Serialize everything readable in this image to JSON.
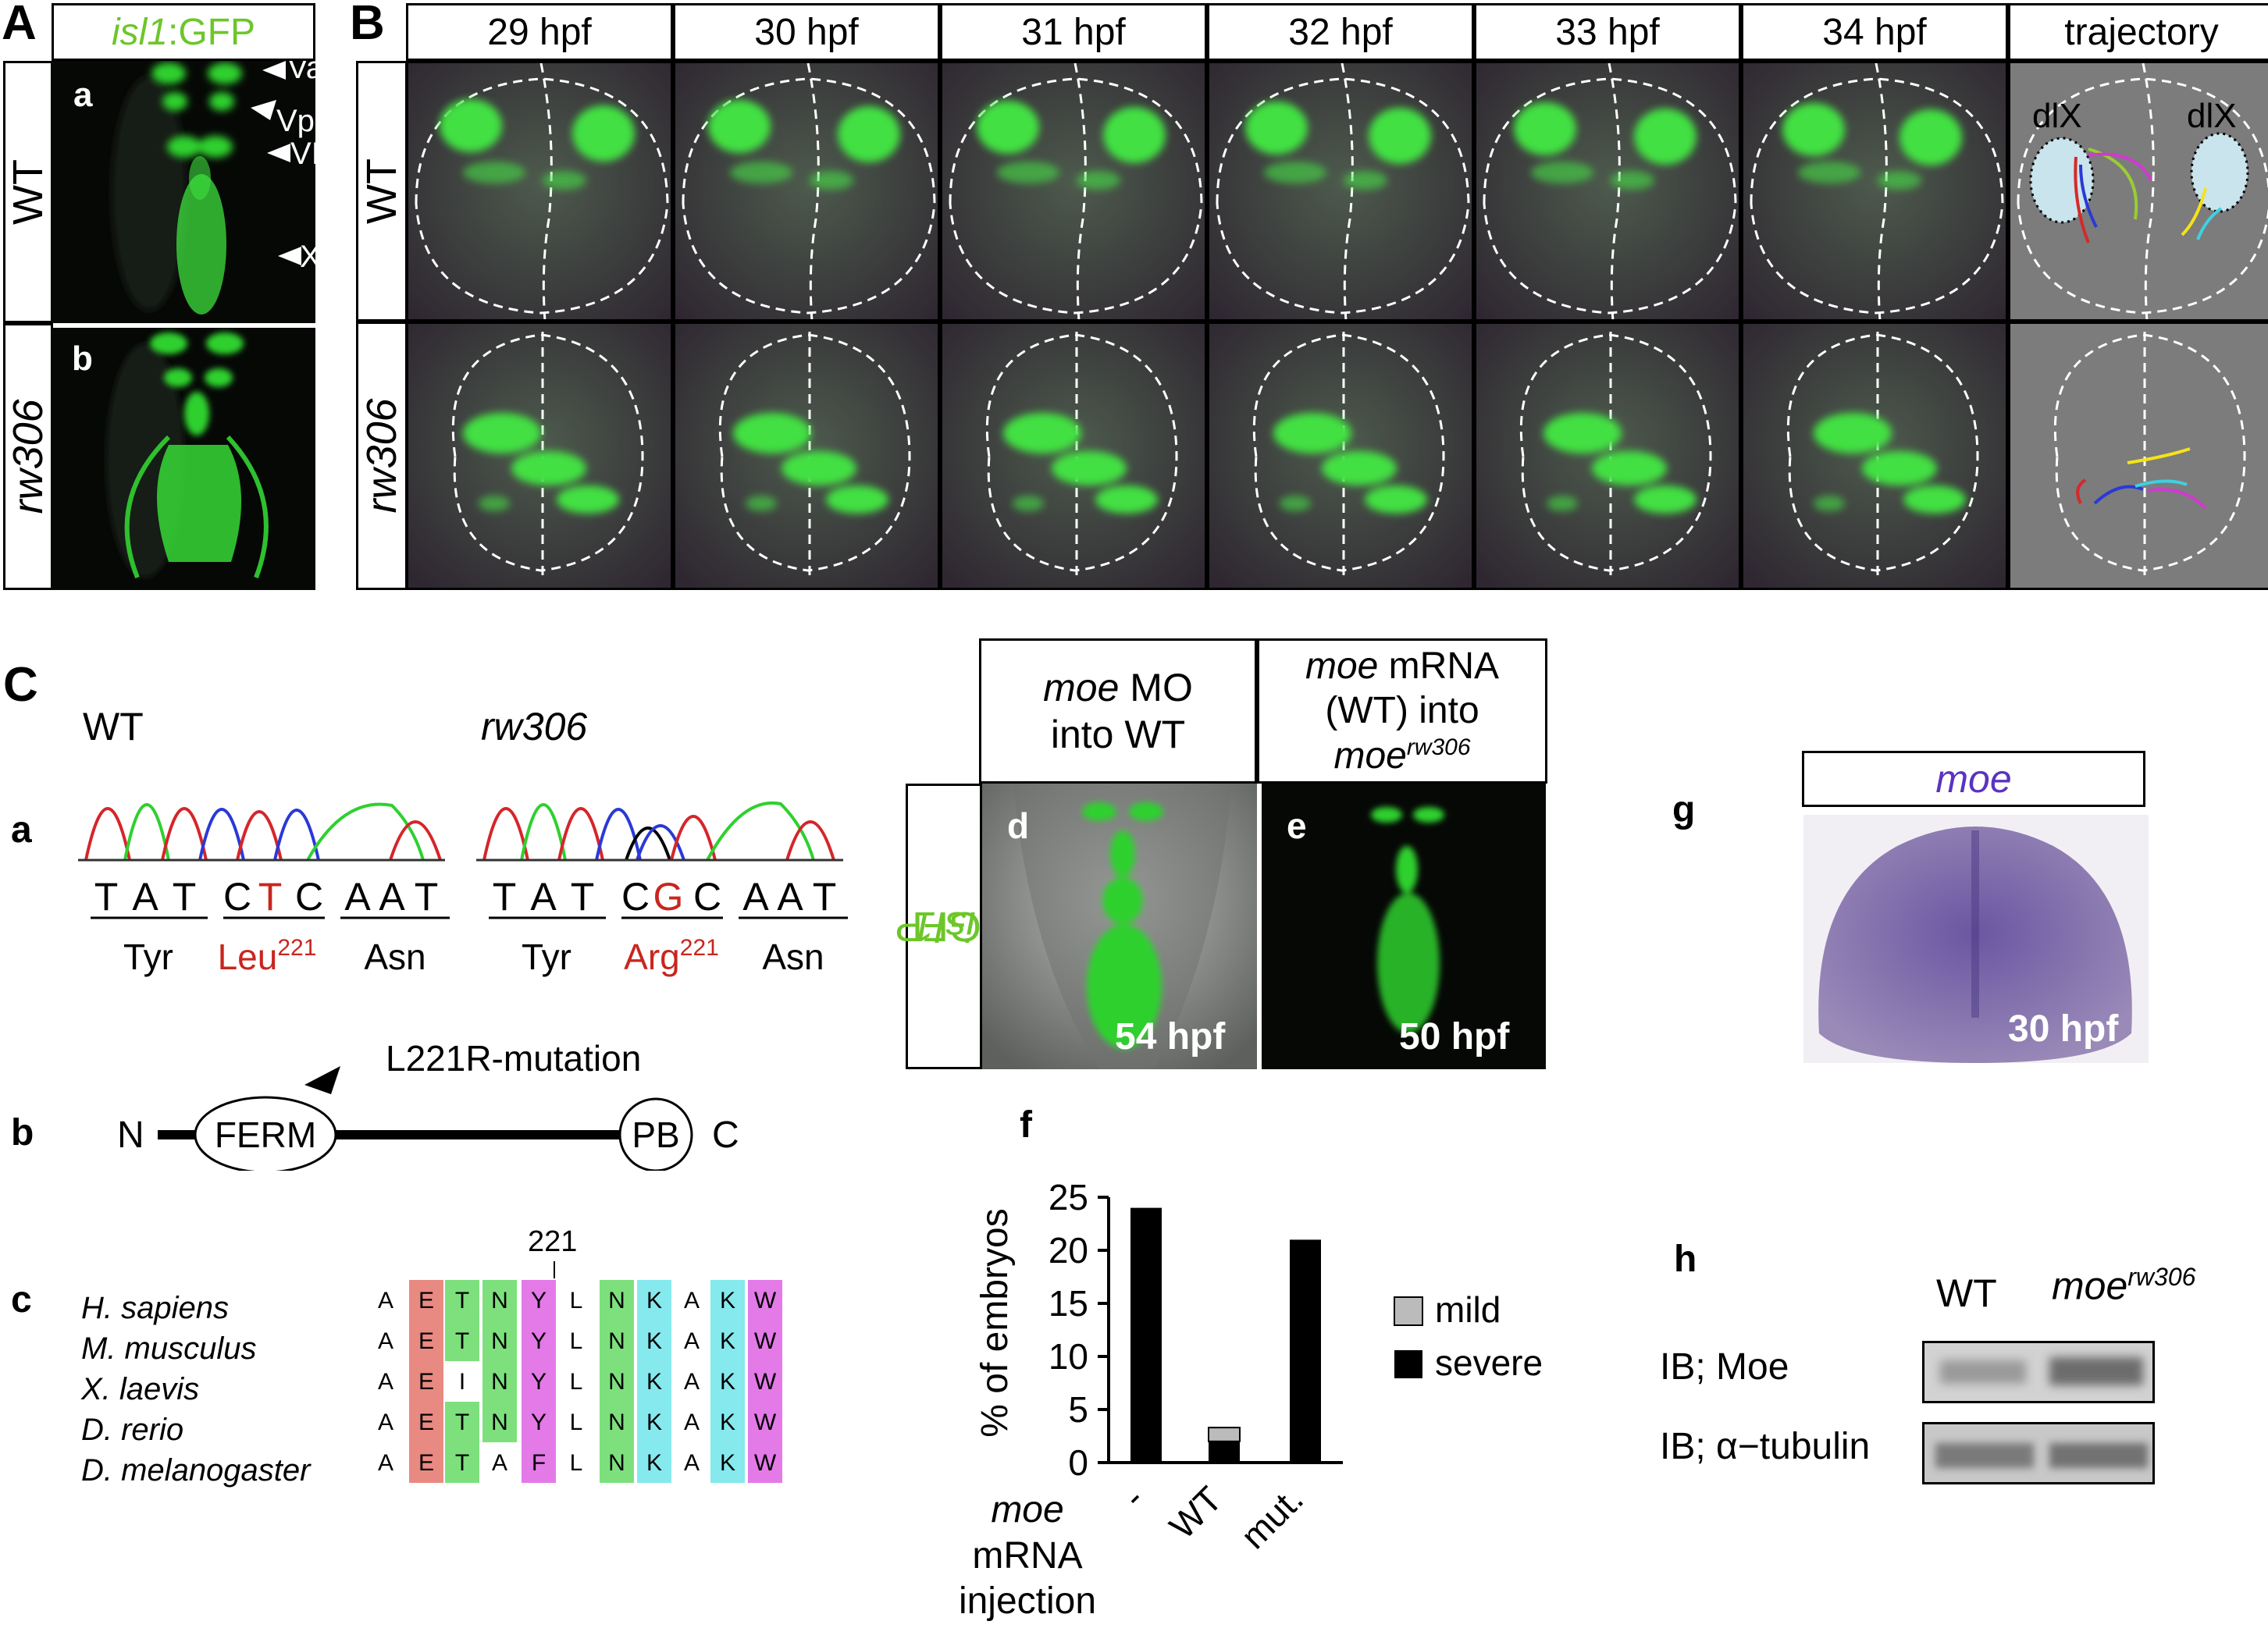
{
  "panelA": {
    "letter": "A",
    "header_italic": "isl1",
    "header_rest": ":GFP",
    "row_wt": "WT",
    "row_mut": "rw306",
    "sub_a": "a",
    "sub_b": "b",
    "labels": [
      "Va",
      "Vp",
      "VII",
      "X"
    ]
  },
  "panelB": {
    "letter": "B",
    "timepoints": [
      "29 hpf",
      "30 hpf",
      "31 hpf",
      "32 hpf",
      "33 hpf",
      "34 hpf",
      "trajectory"
    ],
    "row_wt": "WT",
    "row_mut": "rw306",
    "dlx_left": "dlX",
    "dlx_right": "dlX"
  },
  "panelC": {
    "letter": "C",
    "sub_a": "a",
    "sub_b": "b",
    "sub_c": "c",
    "wt_title": "WT",
    "mut_title": "rw306",
    "wt_bases": [
      "T",
      "A",
      "T",
      "C",
      "T",
      "C",
      "A",
      "A",
      "T"
    ],
    "mut_bases": [
      "T",
      "A",
      "T",
      "C",
      "G",
      "C",
      "A",
      "A",
      "T"
    ],
    "wt_codons": [
      "Tyr",
      "Leu",
      "Asn"
    ],
    "mut_codons": [
      "Tyr",
      "Arg",
      "Asn"
    ],
    "position_sup": "221",
    "domain_n": "N",
    "domain_c": "C",
    "domain_ferm": "FERM",
    "domain_pb": "PB",
    "mutation_label": "L221R-mutation",
    "align_position": "221",
    "species": [
      "H. sapiens",
      "M. musculus",
      "X. laevis",
      "D. rerio",
      "D. melanogaster"
    ],
    "alignment": [
      [
        "A",
        "E",
        "T",
        "N",
        "Y",
        "L",
        "N",
        "K",
        "A",
        "K",
        "W"
      ],
      [
        "A",
        "E",
        "T",
        "N",
        "Y",
        "L",
        "N",
        "K",
        "A",
        "K",
        "W"
      ],
      [
        "A",
        "E",
        "I",
        "N",
        "Y",
        "L",
        "N",
        "K",
        "A",
        "K",
        "W"
      ],
      [
        "A",
        "E",
        "T",
        "N",
        "Y",
        "L",
        "N",
        "K",
        "A",
        "K",
        "W"
      ],
      [
        "A",
        "E",
        "T",
        "A",
        "F",
        "L",
        "N",
        "K",
        "A",
        "K",
        "W"
      ]
    ]
  },
  "panelDE": {
    "header_d_italic": "moe",
    "header_d_rest1": " MO",
    "header_d_rest2": "into WT",
    "header_e_italic": "moe",
    "header_e_rest1": " mRNA",
    "header_e_rest2": "(WT) into",
    "header_e_italic2": "moe",
    "header_e_sup": "rw306",
    "side_italic": "isl1",
    "side_rest": ":GFP",
    "sub_d": "d",
    "sub_e": "e",
    "time_d": "54 hpf",
    "time_e": "50 hpf"
  },
  "panelF": {
    "sub_f": "f",
    "xlabel_italic": "moe",
    "xlabel_line2": "mRNA",
    "xlabel_line3": "injection",
    "legend_mild": "mild",
    "legend_severe": "severe"
  },
  "panelG": {
    "sub_g": "g",
    "header": "moe",
    "time": "30 hpf"
  },
  "panelH": {
    "sub_h": "h",
    "col_wt": "WT",
    "col_mut_italic": "moe",
    "col_mut_sup": "rw306",
    "row_moe": "IB; Moe",
    "row_tub": "IB; α−tubulin"
  },
  "chart_data": {
    "type": "bar",
    "categories": [
      "-",
      "WT",
      "mut."
    ],
    "series": [
      {
        "name": "severe",
        "values": [
          24,
          2,
          21
        ]
      },
      {
        "name": "mild",
        "values": [
          0,
          1.3,
          0
        ]
      }
    ],
    "title": "",
    "xlabel": "moe mRNA injection",
    "ylabel": "% of embryos",
    "ylim": [
      0,
      25
    ],
    "yticks": [
      0,
      5,
      10,
      15,
      20,
      25
    ],
    "legend": "right",
    "colors": {
      "severe": "#000000",
      "mild": "#bbbbbb"
    }
  }
}
